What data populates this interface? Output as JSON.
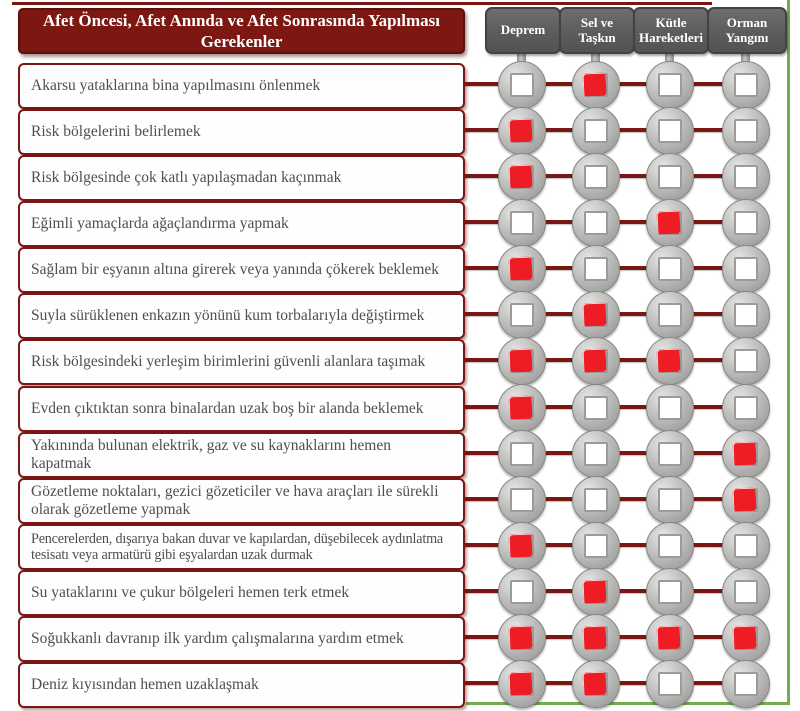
{
  "title": "Afet Öncesi, Afet Anında ve Afet Sonrasında Yapılması Gerekenler",
  "columns": [
    {
      "label": "Deprem"
    },
    {
      "label": "Sel ve Taşkın"
    },
    {
      "label": "Kütle Hareketleri"
    },
    {
      "label": "Orman Yangını"
    }
  ],
  "rows": [
    {
      "text": "Akarsu yataklarına bina yapılmasını önlenmek",
      "checks": [
        false,
        true,
        false,
        false
      ]
    },
    {
      "text": "Risk bölgelerini belirlemek",
      "checks": [
        true,
        false,
        false,
        false
      ]
    },
    {
      "text": "Risk bölgesinde çok katlı yapılaşmadan kaçınmak",
      "checks": [
        true,
        false,
        false,
        false
      ]
    },
    {
      "text": "Eğimli yamaçlarda ağaçlandırma yapmak",
      "checks": [
        false,
        false,
        true,
        false
      ]
    },
    {
      "text": "Sağlam bir eşyanın altına girerek veya yanında çökerek beklemek",
      "checks": [
        true,
        false,
        false,
        false
      ]
    },
    {
      "text": "Suyla sürüklenen enkazın yönünü kum torbalarıyla değiştirmek",
      "checks": [
        false,
        true,
        false,
        false
      ]
    },
    {
      "text": "Risk bölgesindeki yerleşim birimlerini güvenli alanlara taşımak",
      "checks": [
        true,
        true,
        true,
        false
      ]
    },
    {
      "text": "Evden çıktıktan sonra binalardan uzak boş bir alanda beklemek",
      "checks": [
        true,
        false,
        false,
        false
      ]
    },
    {
      "text": "Yakınında bulunan elektrik, gaz ve su kaynaklarını hemen kapatmak",
      "checks": [
        false,
        false,
        false,
        true
      ]
    },
    {
      "text": "Gözetleme noktaları, gezici gözeticiler ve hava araçları ile sürekli olarak gözetleme yapmak",
      "checks": [
        false,
        false,
        false,
        true
      ]
    },
    {
      "text": "Pencerelerden, dışarıya bakan duvar ve kapılardan, düşebilecek aydınlatma tesisatı veya armatürü gibi eşyalardan uzak durmak",
      "checks": [
        true,
        false,
        false,
        false
      ]
    },
    {
      "text": "Su yataklarını ve çukur bölgeleri hemen terk etmek",
      "checks": [
        false,
        true,
        false,
        false
      ]
    },
    {
      "text": "Soğukkanlı davranıp ilk yardım çalışmalarına yardım etmek",
      "checks": [
        true,
        true,
        true,
        true
      ]
    },
    {
      "text": "Deniz kıyısından hemen uzaklaşmak",
      "checks": [
        true,
        true,
        false,
        false
      ]
    }
  ],
  "colors": {
    "dark_red": "#7b1712",
    "check_red": "#ee1c25",
    "border_green": "#72ad4e",
    "header_gray": "#5f5f5f",
    "circle_gray": "#b5b5b4",
    "text_gray": "#4f4f4f"
  }
}
